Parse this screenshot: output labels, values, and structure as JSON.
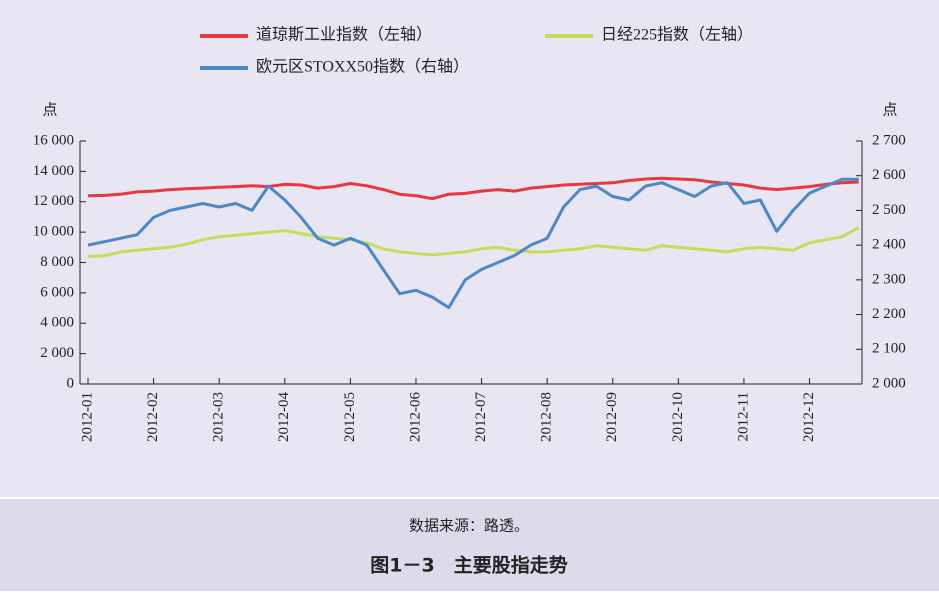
{
  "chart_data": {
    "type": "line",
    "y_label": "点",
    "y2_label": "点",
    "source": "数据来源：路透。",
    "caption": "图1－3　主要股指走势",
    "xlim": [
      0,
      11.8
    ],
    "xticks": [
      {
        "value": 0,
        "label": "2012-01"
      },
      {
        "value": 1,
        "label": "2012-02"
      },
      {
        "value": 2,
        "label": "2012-03"
      },
      {
        "value": 3,
        "label": "2012-04"
      },
      {
        "value": 4,
        "label": "2012-05"
      },
      {
        "value": 5,
        "label": "2012-06"
      },
      {
        "value": 6,
        "label": "2012-07"
      },
      {
        "value": 7,
        "label": "2012-08"
      },
      {
        "value": 8,
        "label": "2012-09"
      },
      {
        "value": 9,
        "label": "2012-10"
      },
      {
        "value": 10,
        "label": "2012-11"
      },
      {
        "value": 11,
        "label": "2012-12"
      }
    ],
    "x": [
      0,
      0.25,
      0.5,
      0.75,
      1,
      1.25,
      1.5,
      1.75,
      2,
      2.25,
      2.5,
      2.75,
      3,
      3.25,
      3.5,
      3.75,
      4,
      4.25,
      4.5,
      4.75,
      5,
      5.25,
      5.5,
      5.75,
      6,
      6.25,
      6.5,
      6.75,
      7,
      7.25,
      7.5,
      7.75,
      8,
      8.25,
      8.5,
      8.75,
      9,
      9.25,
      9.5,
      9.75,
      10,
      10.25,
      10.5,
      10.75,
      11,
      11.25,
      11.5,
      11.75
    ],
    "ylim": [
      0,
      16000
    ],
    "yticks": [
      0,
      {
        "value": 2000,
        "label": "2 000"
      },
      {
        "value": 4000,
        "label": "4 000"
      },
      {
        "value": 6000,
        "label": "6 000"
      },
      {
        "value": 8000,
        "label": "8 000"
      },
      {
        "value": 10000,
        "label": "10 000"
      },
      {
        "value": 12000,
        "label": "12 000"
      },
      {
        "value": 14000,
        "label": "14 000"
      },
      {
        "value": 16000,
        "label": "16 000"
      }
    ],
    "y2lim": [
      2000,
      2700
    ],
    "y2ticks": [
      {
        "value": 2000,
        "label": "2 000"
      },
      {
        "value": 2100,
        "label": "2 100"
      },
      {
        "value": 2200,
        "label": "2 200"
      },
      {
        "value": 2300,
        "label": "2 300"
      },
      {
        "value": 2400,
        "label": "2 400"
      },
      {
        "value": 2500,
        "label": "2 500"
      },
      {
        "value": 2600,
        "label": "2 600"
      },
      {
        "value": 2700,
        "label": "2 700"
      }
    ],
    "series": [
      {
        "name": "道琼斯工业指数（左轴）",
        "color": "#e8383d",
        "axis": "y",
        "values": [
          12400,
          12420,
          12500,
          12650,
          12700,
          12800,
          12850,
          12900,
          12950,
          13000,
          13050,
          13000,
          13150,
          13100,
          12900,
          13000,
          13200,
          13050,
          12800,
          12500,
          12400,
          12200,
          12500,
          12550,
          12700,
          12800,
          12700,
          12900,
          13000,
          13100,
          13150,
          13200,
          13250,
          13400,
          13500,
          13550,
          13500,
          13450,
          13300,
          13200,
          13100,
          12900,
          12800,
          12900,
          13000,
          13150,
          13250,
          13300
        ]
      },
      {
        "name": "日经225指数（左轴）",
        "color": "#c5dc5a",
        "axis": "y",
        "values": [
          8400,
          8450,
          8700,
          8800,
          8900,
          9000,
          9200,
          9500,
          9700,
          9800,
          9900,
          10000,
          10100,
          9900,
          9700,
          9600,
          9500,
          9300,
          8900,
          8700,
          8600,
          8500,
          8600,
          8700,
          8900,
          9000,
          8800,
          8700,
          8700,
          8800,
          8900,
          9100,
          9000,
          8900,
          8800,
          9100,
          9000,
          8900,
          8800,
          8700,
          8900,
          9000,
          8900,
          8800,
          9300,
          9500,
          9700,
          10300
        ]
      },
      {
        "name": "欧元区STOXX50指数（右轴）",
        "color": "#4a88c8",
        "axis": "y2",
        "values": [
          2400,
          2410,
          2420,
          2430,
          2480,
          2500,
          2510,
          2520,
          2510,
          2520,
          2500,
          2570,
          2530,
          2480,
          2420,
          2400,
          2420,
          2400,
          2330,
          2260,
          2270,
          2250,
          2220,
          2300,
          2330,
          2350,
          2370,
          2400,
          2420,
          2510,
          2560,
          2570,
          2540,
          2530,
          2570,
          2580,
          2560,
          2540,
          2570,
          2580,
          2520,
          2530,
          2440,
          2500,
          2550,
          2570,
          2590,
          2590
        ]
      }
    ]
  }
}
